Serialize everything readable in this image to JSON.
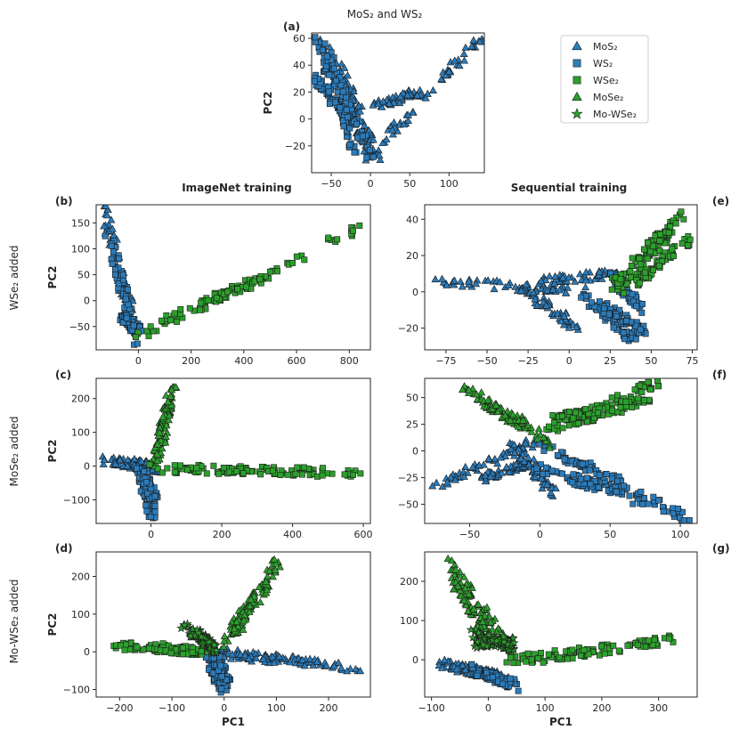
{
  "figure": {
    "top_title": "MoS₂ and WS₂",
    "col_left_title": "ImageNet training",
    "col_right_title": "Sequential training",
    "row_labels": [
      "WSe₂ added",
      "MoSe₂ added",
      "Mo-WSe₂ added"
    ]
  },
  "legend": [
    {
      "label": "MoS₂",
      "marker": "triangle",
      "color": "#2c7fb8"
    },
    {
      "label": "WS₂",
      "marker": "square",
      "color": "#2c7fb8"
    },
    {
      "label": "WSe₂",
      "marker": "square",
      "color": "#2ca02c"
    },
    {
      "label": "MoSe₂",
      "marker": "triangle",
      "color": "#2ca02c"
    },
    {
      "label": "Mo-WSe₂",
      "marker": "star",
      "color": "#2ca02c"
    }
  ],
  "colors": {
    "blue": "#2b7bba",
    "green": "#2ca02c",
    "edge": "#1a1a1a"
  },
  "chart_data": [
    {
      "id": "a",
      "letter": "(a)",
      "type": "scatter",
      "xlabel": "",
      "ylabel": "PC2",
      "xlim": [
        -75,
        145
      ],
      "ylim": [
        -40,
        64
      ],
      "xticks": [
        -50,
        0,
        50,
        100
      ],
      "yticks": [
        -20,
        0,
        20,
        40,
        60
      ],
      "series": [
        {
          "name": "MoS₂",
          "marker": "triangle",
          "color": "#2b7bba",
          "segments": [
            [
              -62,
              58,
              -2,
              -28
            ],
            [
              -2,
              -28,
              140,
              60
            ],
            [
              -40,
              40,
              10,
              -30
            ],
            [
              5,
              10,
              60,
              20
            ]
          ]
        },
        {
          "name": "WS₂",
          "marker": "square",
          "color": "#2b7bba",
          "segments": [
            [
              -65,
              58,
              -18,
              -30
            ],
            [
              -55,
              50,
              0,
              -30
            ],
            [
              -70,
              30,
              -30,
              0
            ]
          ]
        }
      ]
    },
    {
      "id": "b",
      "letter": "(b)",
      "type": "scatter",
      "xlabel": "",
      "ylabel": "PC2",
      "xlim": [
        -160,
        880
      ],
      "ylim": [
        -95,
        185
      ],
      "xticks": [
        0,
        200,
        400,
        600,
        800
      ],
      "yticks": [
        -50,
        0,
        50,
        100,
        150
      ],
      "series": [
        {
          "name": "MoS₂",
          "marker": "triangle",
          "color": "#2b7bba",
          "segments": [
            [
              -130,
              178,
              -20,
              -40
            ]
          ]
        },
        {
          "name": "WS₂",
          "marker": "square",
          "color": "#2b7bba",
          "segments": [
            [
              -110,
              120,
              -5,
              -80
            ],
            [
              -60,
              -30,
              0,
              -60
            ]
          ]
        },
        {
          "name": "WSe₂",
          "marker": "square",
          "color": "#2ca02c",
          "segments": [
            [
              -20,
              -75,
              860,
              145
            ],
            [
              100,
              -40,
              500,
              50
            ]
          ]
        }
      ]
    },
    {
      "id": "e",
      "letter": "(e)",
      "type": "scatter",
      "xlabel": "",
      "ylabel": "",
      "xlim": [
        -88,
        78
      ],
      "ylim": [
        -32,
        48
      ],
      "xticks": [
        -75,
        -50,
        -25,
        0,
        25,
        50,
        75
      ],
      "yticks": [
        -20,
        0,
        20,
        40
      ],
      "series": [
        {
          "name": "MoS₂",
          "marker": "triangle",
          "color": "#2b7bba",
          "segments": [
            [
              -80,
              6,
              10,
              0
            ],
            [
              -30,
              3,
              5,
              -20
            ],
            [
              -20,
              6,
              30,
              10
            ]
          ]
        },
        {
          "name": "WS₂",
          "marker": "square",
          "color": "#2b7bba",
          "segments": [
            [
              5,
              0,
              40,
              -28
            ],
            [
              15,
              -5,
              45,
              -22
            ],
            [
              25,
              10,
              45,
              -10
            ]
          ]
        },
        {
          "name": "WSe₂",
          "marker": "square",
          "color": "#2ca02c",
          "segments": [
            [
              30,
              0,
              70,
              43
            ],
            [
              40,
              5,
              75,
              30
            ],
            [
              25,
              2,
              60,
              35
            ]
          ]
        }
      ]
    },
    {
      "id": "c",
      "letter": "(c)",
      "type": "scatter",
      "xlabel": "",
      "ylabel": "PC2",
      "xlim": [
        -155,
        620
      ],
      "ylim": [
        -170,
        260
      ],
      "xticks": [
        0,
        200,
        400,
        600
      ],
      "yticks": [
        -100,
        0,
        100,
        200
      ],
      "series": [
        {
          "name": "MoS₂",
          "marker": "triangle",
          "color": "#2b7bba",
          "segments": [
            [
              -140,
              18,
              10,
              -5
            ],
            [
              -60,
              10,
              20,
              -8
            ]
          ]
        },
        {
          "name": "WS₂",
          "marker": "square",
          "color": "#2b7bba",
          "segments": [
            [
              -30,
              -10,
              5,
              -150
            ],
            [
              -15,
              -20,
              10,
              -110
            ]
          ]
        },
        {
          "name": "MoSe₂",
          "marker": "triangle",
          "color": "#2ca02c",
          "segments": [
            [
              10,
              0,
              60,
              240
            ],
            [
              20,
              40,
              55,
              200
            ]
          ]
        },
        {
          "name": "WSe₂",
          "marker": "square",
          "color": "#2ca02c",
          "segments": [
            [
              -10,
              -5,
              600,
              -20
            ],
            [
              60,
              -8,
              480,
              -18
            ]
          ]
        }
      ]
    },
    {
      "id": "f",
      "letter": "(f)",
      "type": "scatter",
      "xlabel": "",
      "ylabel": "",
      "xlim": [
        -82,
        112
      ],
      "ylim": [
        -68,
        68
      ],
      "xticks": [
        -50,
        0,
        50,
        100
      ],
      "yticks": [
        -50,
        -25,
        0,
        25,
        50
      ],
      "series": [
        {
          "name": "MoS₂",
          "marker": "triangle",
          "color": "#2b7bba",
          "segments": [
            [
              -75,
              -32,
              0,
              10
            ],
            [
              -40,
              -25,
              -5,
              -10
            ],
            [
              -20,
              5,
              10,
              -40
            ]
          ]
        },
        {
          "name": "WS₂",
          "marker": "square",
          "color": "#2b7bba",
          "segments": [
            [
              -5,
              -15,
              105,
              -62
            ],
            [
              20,
              -25,
              85,
              -45
            ],
            [
              0,
              5,
              60,
              -30
            ]
          ]
        },
        {
          "name": "MoSe₂",
          "marker": "triangle",
          "color": "#2ca02c",
          "segments": [
            [
              -55,
              60,
              10,
              5
            ],
            [
              -40,
              45,
              -10,
              25
            ]
          ]
        },
        {
          "name": "WSe₂",
          "marker": "square",
          "color": "#2ca02c",
          "segments": [
            [
              0,
              15,
              85,
              65
            ],
            [
              20,
              25,
              80,
              50
            ],
            [
              10,
              30,
              65,
              45
            ]
          ]
        }
      ]
    },
    {
      "id": "d",
      "letter": "(d)",
      "type": "scatter",
      "xlabel": "PC1",
      "ylabel": "PC2",
      "xlim": [
        -245,
        280
      ],
      "ylim": [
        -120,
        265
      ],
      "xticks": [
        -200,
        -100,
        0,
        100,
        200
      ],
      "yticks": [
        -100,
        0,
        100,
        200
      ],
      "series": [
        {
          "name": "MoS₂",
          "marker": "triangle",
          "color": "#2b7bba",
          "segments": [
            [
              -20,
              0,
              265,
              -45
            ],
            [
              0,
              -10,
              220,
              -35
            ]
          ]
        },
        {
          "name": "WS₂",
          "marker": "square",
          "color": "#2b7bba",
          "segments": [
            [
              -30,
              -10,
              0,
              -105
            ],
            [
              -15,
              -20,
              5,
              -80
            ]
          ]
        },
        {
          "name": "WSe₂",
          "marker": "square",
          "color": "#2ca02c",
          "segments": [
            [
              -225,
              20,
              -10,
              -5
            ],
            [
              -150,
              15,
              -40,
              0
            ]
          ]
        },
        {
          "name": "MoSe₂",
          "marker": "triangle",
          "color": "#2ca02c",
          "segments": [
            [
              -10,
              10,
              105,
              245
            ],
            [
              20,
              50,
              80,
              180
            ]
          ]
        },
        {
          "name": "Mo-WSe₂",
          "marker": "star",
          "color": "#2ca02c",
          "segments": [
            [
              -80,
              70,
              -15,
              5
            ],
            [
              -60,
              55,
              -25,
              20
            ]
          ]
        }
      ]
    },
    {
      "id": "g",
      "letter": "(g)",
      "type": "scatter",
      "xlabel": "PC1",
      "ylabel": "",
      "xlim": [
        -112,
        368
      ],
      "ylim": [
        -95,
        275
      ],
      "xticks": [
        -100,
        0,
        100,
        200,
        300
      ],
      "yticks": [
        0,
        100,
        200
      ],
      "series": [
        {
          "name": "MoS₂",
          "marker": "triangle",
          "color": "#2b7bba",
          "segments": [
            [
              -80,
              -10,
              40,
              -55
            ],
            [
              -60,
              -20,
              20,
              -40
            ]
          ]
        },
        {
          "name": "WS₂",
          "marker": "square",
          "color": "#2b7bba",
          "segments": [
            [
              -30,
              -20,
              50,
              -70
            ],
            [
              0,
              -40,
              40,
              -60
            ]
          ]
        },
        {
          "name": "MoSe₂",
          "marker": "triangle",
          "color": "#2ca02c",
          "segments": [
            [
              -70,
              255,
              40,
              20
            ],
            [
              -60,
              200,
              0,
              60
            ]
          ]
        },
        {
          "name": "Mo-WSe₂",
          "marker": "star",
          "color": "#2ca02c",
          "segments": [
            [
              -30,
              70,
              45,
              30
            ],
            [
              -20,
              40,
              40,
              50
            ]
          ]
        },
        {
          "name": "WSe₂",
          "marker": "square",
          "color": "#2ca02c",
          "segments": [
            [
              10,
              -5,
              350,
              55
            ],
            [
              60,
              -5,
              300,
              45
            ]
          ]
        }
      ]
    }
  ]
}
